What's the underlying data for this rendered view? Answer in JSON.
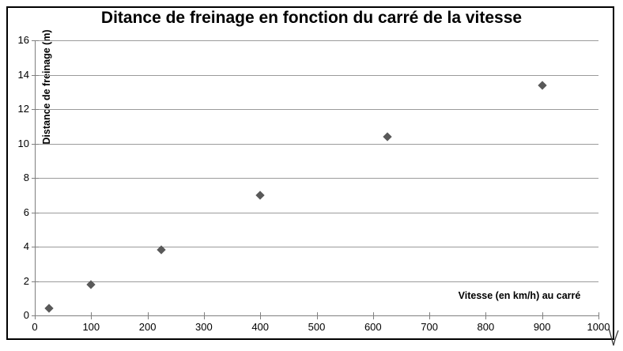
{
  "chart_data": {
    "type": "scatter",
    "title": "Ditance de freinage en fonction du carré de la vitesse",
    "xlabel": "Vitesse (en km/h) au carré",
    "ylabel": "Distance de freinage (m)",
    "x": [
      25,
      100,
      225,
      400,
      625,
      900
    ],
    "y": [
      0.4,
      1.8,
      3.8,
      7,
      10.4,
      13.4
    ],
    "xlim": [
      0,
      1000
    ],
    "ylim": [
      0,
      16
    ],
    "x_ticks": [
      0,
      100,
      200,
      300,
      400,
      500,
      600,
      700,
      800,
      900,
      1000
    ],
    "y_ticks": [
      0,
      2,
      4,
      6,
      8,
      10,
      12,
      14,
      16
    ],
    "grid": "horizontal",
    "legend": "none",
    "marker": "diamond",
    "colors": {
      "marker": "#595959",
      "grid": "#9b9b9b",
      "axis": "#7f7f7f",
      "text": "#000000",
      "background": "#ffffff",
      "border": "#000000"
    }
  }
}
